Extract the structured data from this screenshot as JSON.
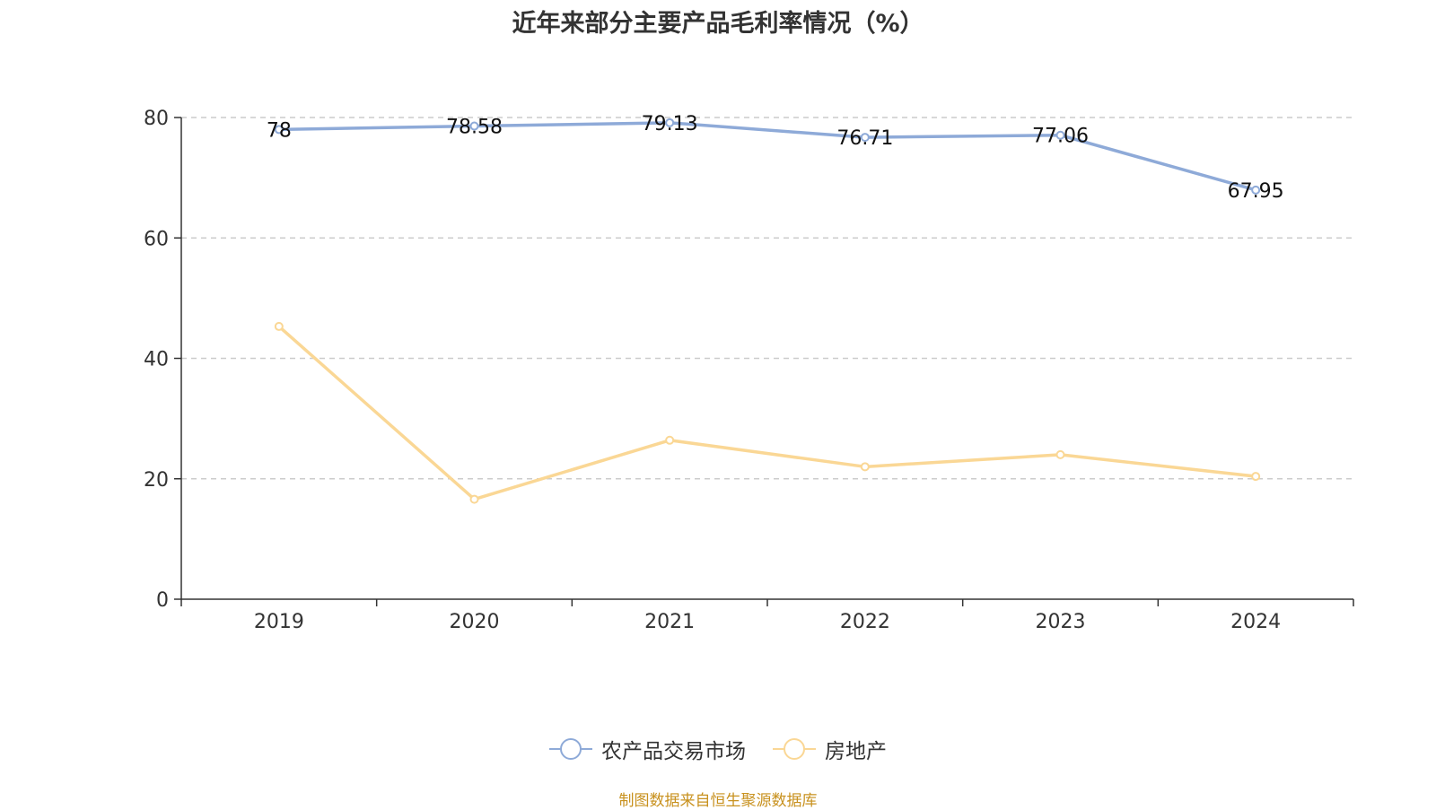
{
  "chart_data": {
    "type": "line",
    "title": "近年来部分主要产品毛利率情况（%）",
    "categories": [
      "2019",
      "2020",
      "2021",
      "2022",
      "2023",
      "2024"
    ],
    "ylim": [
      0,
      80
    ],
    "yticks": [
      "0",
      "20",
      "40",
      "60",
      "80"
    ],
    "grid": true,
    "legend_position": "bottom",
    "series": [
      {
        "name": "农产品交易市场",
        "values": [
          78,
          78.58,
          79.13,
          76.71,
          77.06,
          67.95
        ],
        "labels": [
          "78",
          "78.58",
          "79.13",
          "76.71",
          "77.06",
          "67.95"
        ],
        "color": "#8eaad8",
        "show_labels": true
      },
      {
        "name": "房地产",
        "values": [
          45.3,
          16.6,
          26.4,
          22.0,
          24.0,
          20.4
        ],
        "color": "#fad795",
        "show_labels": false
      }
    ],
    "source_note": "制图数据来自恒生聚源数据库",
    "source_note_color": "#c8911e"
  }
}
